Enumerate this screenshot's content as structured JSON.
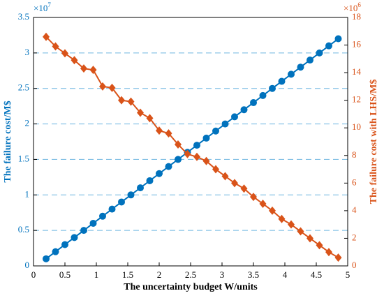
{
  "chart_data": {
    "type": "line",
    "x_label": "The uncertainty budget W/units",
    "y_label": "The failure cost/M$",
    "y2_label": "The failure cost with LHS/M$",
    "y_multiplier": {
      "base": "×10",
      "exp": "7"
    },
    "y2_multiplier": {
      "base": "×10",
      "exp": "6"
    },
    "x": [
      0.2,
      0.35,
      0.5,
      0.65,
      0.8,
      0.95,
      1.1,
      1.25,
      1.4,
      1.55,
      1.7,
      1.85,
      2.0,
      2.15,
      2.3,
      2.45,
      2.6,
      2.75,
      2.9,
      3.05,
      3.2,
      3.35,
      3.5,
      3.65,
      3.8,
      3.95,
      4.1,
      4.25,
      4.4,
      4.55,
      4.7,
      4.85
    ],
    "series": [
      {
        "name": "The failure cost",
        "color": "#0072bd",
        "marker": "circle",
        "values": [
          0.1,
          0.2,
          0.3,
          0.4,
          0.5,
          0.6,
          0.7,
          0.8,
          0.9,
          1.0,
          1.1,
          1.2,
          1.3,
          1.4,
          1.5,
          1.6,
          1.7,
          1.8,
          1.9,
          2.0,
          2.1,
          2.2,
          2.3,
          2.4,
          2.5,
          2.6,
          2.7,
          2.8,
          2.9,
          3.0,
          3.1,
          3.2
        ]
      },
      {
        "name": "The failure cost with LHS",
        "color": "#d95319",
        "marker": "diamond",
        "axis": "y2",
        "values": [
          16.6,
          15.9,
          15.4,
          14.9,
          14.3,
          14.2,
          13.0,
          12.9,
          12.0,
          11.9,
          11.1,
          10.7,
          9.8,
          9.6,
          8.8,
          8.1,
          7.9,
          7.6,
          7.0,
          6.5,
          6.0,
          5.6,
          5.0,
          4.5,
          4.0,
          3.4,
          3.0,
          2.5,
          2.0,
          1.5,
          1.0,
          0.6
        ]
      }
    ],
    "xlim": [
      0,
      5
    ],
    "xticks": [
      0,
      0.5,
      1,
      1.5,
      2,
      2.5,
      3,
      3.5,
      4,
      4.5,
      5
    ],
    "ylim": [
      0,
      3.5
    ],
    "yticks": [
      0,
      0.5,
      1,
      1.5,
      2,
      2.5,
      3,
      3.5
    ],
    "y2lim": [
      0,
      18
    ],
    "y2ticks": [
      0,
      2,
      4,
      6,
      8,
      10,
      12,
      14,
      16,
      18
    ],
    "grid": true,
    "grid_color": "#6fb6e0"
  }
}
